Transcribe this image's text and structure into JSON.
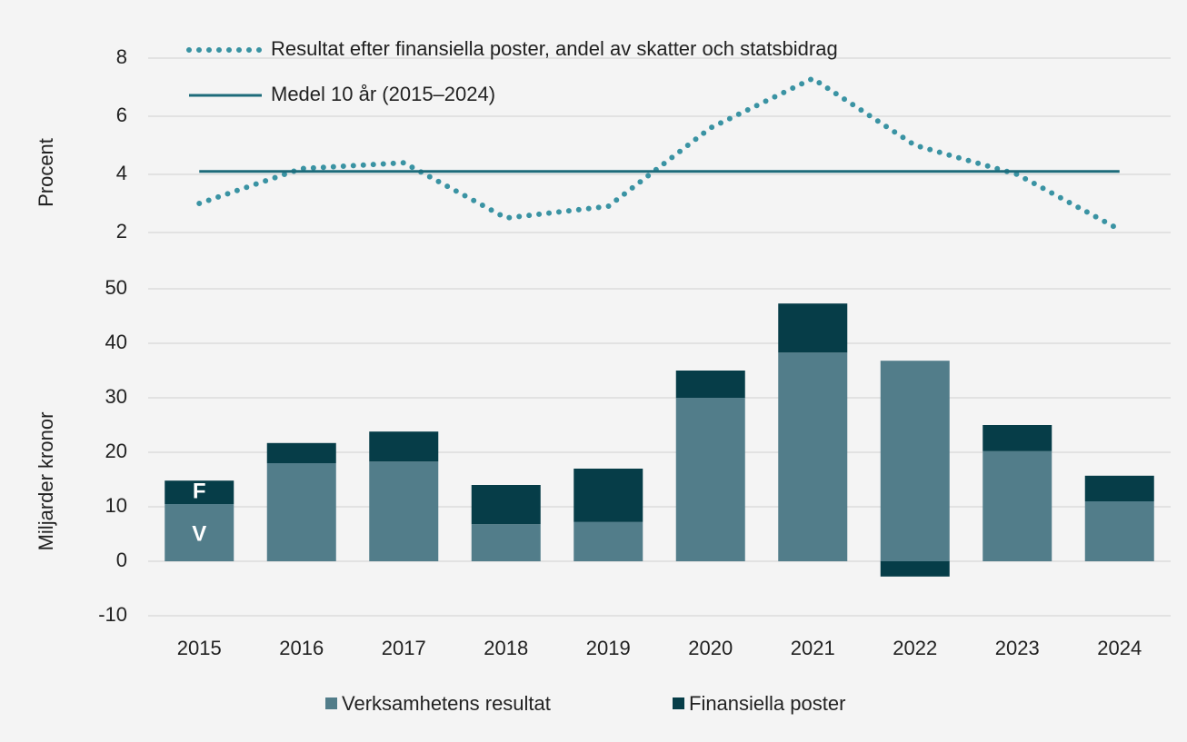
{
  "chart_data": [
    {
      "type": "line",
      "ylabel": "Procent",
      "ylim": [
        2,
        8
      ],
      "yticks": [
        2,
        4,
        6,
        8
      ],
      "grid": true,
      "legend": "upper left",
      "series": [
        {
          "name": "Resultat efter finansiella poster, andel av skatter och statsbidrag",
          "color": "#3a93a3",
          "style": "dotted",
          "values": [
            3.0,
            4.2,
            4.4,
            2.5,
            2.9,
            5.6,
            7.3,
            5.0,
            4.0,
            2.1
          ]
        },
        {
          "name": "Medel 10 år (2015–2024)",
          "color": "#1d6b7a",
          "style": "solid",
          "values": [
            4.1,
            4.1,
            4.1,
            4.1,
            4.1,
            4.1,
            4.1,
            4.1,
            4.1,
            4.1
          ]
        }
      ]
    },
    {
      "type": "stacked_bar",
      "ylabel": "Miljarder kronor",
      "ylim": [
        -10,
        50
      ],
      "yticks": [
        -10,
        0,
        10,
        20,
        30,
        40,
        50
      ],
      "grid": true,
      "legend": "bottom",
      "categories": [
        "2015",
        "2016",
        "2017",
        "2018",
        "2019",
        "2020",
        "2021",
        "2022",
        "2023",
        "2024"
      ],
      "series": [
        {
          "name": "Verksamhetens resultat",
          "color": "#527d8a",
          "values": [
            10.5,
            18,
            18.3,
            6.8,
            7.2,
            30,
            38.3,
            36.8,
            20.2,
            11
          ]
        },
        {
          "name": "Finansiella poster",
          "color": "#063d48",
          "values": [
            4.3,
            3.7,
            5.5,
            7.2,
            9.8,
            5,
            9,
            -2.8,
            4.8,
            4.7
          ]
        }
      ],
      "annotations": [
        "F",
        "V"
      ]
    }
  ]
}
